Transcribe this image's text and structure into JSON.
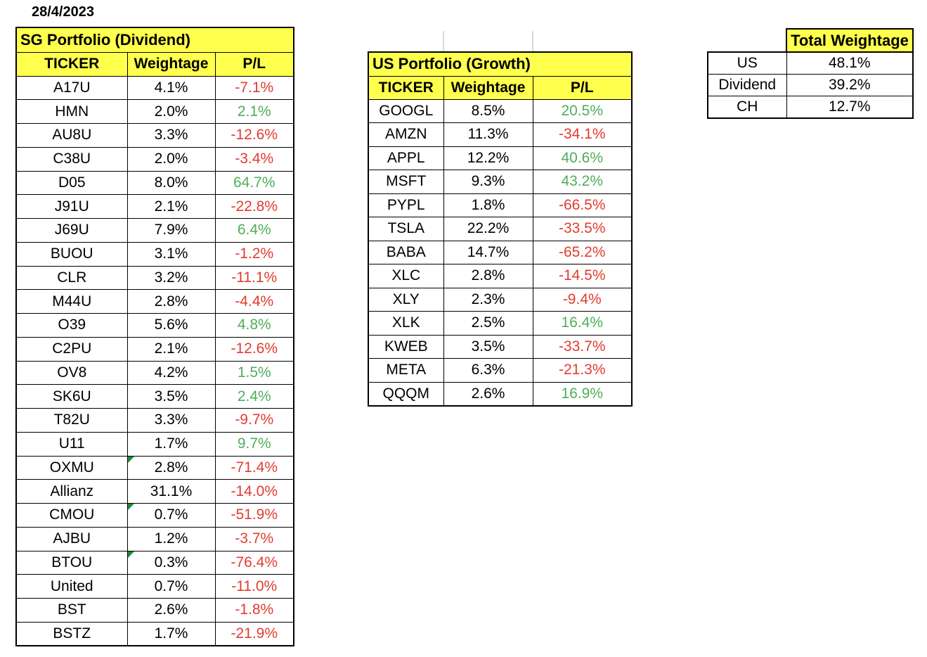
{
  "date": "28/4/2023",
  "colors": {
    "header_yellow": "#FFFF4D",
    "positive_green": "#4FAD5B",
    "negative_red": "#E03C2F",
    "comment_flag_green": "#1E8A3C",
    "faint_gridline_gray": "#D9D9D9",
    "border_black": "#000000"
  },
  "sg_portfolio": {
    "title": "SG Portfolio (Dividend)",
    "columns": [
      "TICKER",
      "Weightage",
      "P/L"
    ],
    "rows": [
      {
        "ticker": "A17U",
        "weightage": "4.1%",
        "pl": "-7.1%",
        "comment_flag": false
      },
      {
        "ticker": "HMN",
        "weightage": "2.0%",
        "pl": "2.1%",
        "comment_flag": false
      },
      {
        "ticker": "AU8U",
        "weightage": "3.3%",
        "pl": "-12.6%",
        "comment_flag": false
      },
      {
        "ticker": "C38U",
        "weightage": "2.0%",
        "pl": "-3.4%",
        "comment_flag": false
      },
      {
        "ticker": "D05",
        "weightage": "8.0%",
        "pl": "64.7%",
        "comment_flag": false
      },
      {
        "ticker": "J91U",
        "weightage": "2.1%",
        "pl": "-22.8%",
        "comment_flag": false
      },
      {
        "ticker": "J69U",
        "weightage": "7.9%",
        "pl": "6.4%",
        "comment_flag": false
      },
      {
        "ticker": "BUOU",
        "weightage": "3.1%",
        "pl": "-1.2%",
        "comment_flag": false
      },
      {
        "ticker": "CLR",
        "weightage": "3.2%",
        "pl": "-11.1%",
        "comment_flag": false
      },
      {
        "ticker": "M44U",
        "weightage": "2.8%",
        "pl": "-4.4%",
        "comment_flag": false
      },
      {
        "ticker": "O39",
        "weightage": "5.6%",
        "pl": "4.8%",
        "comment_flag": false
      },
      {
        "ticker": "C2PU",
        "weightage": "2.1%",
        "pl": "-12.6%",
        "comment_flag": false
      },
      {
        "ticker": "OV8",
        "weightage": "4.2%",
        "pl": "1.5%",
        "comment_flag": false
      },
      {
        "ticker": "SK6U",
        "weightage": "3.5%",
        "pl": "2.4%",
        "comment_flag": false
      },
      {
        "ticker": "T82U",
        "weightage": "3.3%",
        "pl": "-9.7%",
        "comment_flag": false
      },
      {
        "ticker": "U11",
        "weightage": "1.7%",
        "pl": "9.7%",
        "comment_flag": false
      },
      {
        "ticker": "OXMU",
        "weightage": "2.8%",
        "pl": "-71.4%",
        "comment_flag": true
      },
      {
        "ticker": "Allianz",
        "weightage": "31.1%",
        "pl": "-14.0%",
        "comment_flag": false
      },
      {
        "ticker": "CMOU",
        "weightage": "0.7%",
        "pl": "-51.9%",
        "comment_flag": true
      },
      {
        "ticker": "AJBU",
        "weightage": "1.2%",
        "pl": "-3.7%",
        "comment_flag": false
      },
      {
        "ticker": "BTOU",
        "weightage": "0.3%",
        "pl": "-76.4%",
        "comment_flag": true
      },
      {
        "ticker": "United",
        "weightage": "0.7%",
        "pl": "-11.0%",
        "comment_flag": false
      },
      {
        "ticker": "BST",
        "weightage": "2.6%",
        "pl": "-1.8%",
        "comment_flag": false
      },
      {
        "ticker": "BSTZ",
        "weightage": "1.7%",
        "pl": "-21.9%",
        "comment_flag": false
      }
    ]
  },
  "us_portfolio": {
    "title": "US Portfolio (Growth)",
    "columns": [
      "TICKER",
      "Weightage",
      "P/L"
    ],
    "rows": [
      {
        "ticker": "GOOGL",
        "weightage": "8.5%",
        "pl": "20.5%",
        "comment_flag": false
      },
      {
        "ticker": "AMZN",
        "weightage": "11.3%",
        "pl": "-34.1%",
        "comment_flag": false
      },
      {
        "ticker": "APPL",
        "weightage": "12.2%",
        "pl": "40.6%",
        "comment_flag": false
      },
      {
        "ticker": "MSFT",
        "weightage": "9.3%",
        "pl": "43.2%",
        "comment_flag": false
      },
      {
        "ticker": "PYPL",
        "weightage": "1.8%",
        "pl": "-66.5%",
        "comment_flag": false
      },
      {
        "ticker": "TSLA",
        "weightage": "22.2%",
        "pl": "-33.5%",
        "comment_flag": false
      },
      {
        "ticker": "BABA",
        "weightage": "14.7%",
        "pl": "-65.2%",
        "comment_flag": false
      },
      {
        "ticker": "XLC",
        "weightage": "2.8%",
        "pl": "-14.5%",
        "comment_flag": false
      },
      {
        "ticker": "XLY",
        "weightage": "2.3%",
        "pl": "-9.4%",
        "comment_flag": false
      },
      {
        "ticker": "XLK",
        "weightage": "2.5%",
        "pl": "16.4%",
        "comment_flag": false
      },
      {
        "ticker": "KWEB",
        "weightage": "3.5%",
        "pl": "-33.7%",
        "comment_flag": false
      },
      {
        "ticker": "META",
        "weightage": "6.3%",
        "pl": "-21.3%",
        "comment_flag": false
      },
      {
        "ticker": "QQQM",
        "weightage": "2.6%",
        "pl": "16.9%",
        "comment_flag": false
      }
    ]
  },
  "total_weightage": {
    "title": "Total Weightage",
    "rows": [
      {
        "label": "US",
        "value": "48.1%"
      },
      {
        "label": "Dividend",
        "value": "39.2%"
      },
      {
        "label": "CH",
        "value": "12.7%"
      }
    ]
  }
}
